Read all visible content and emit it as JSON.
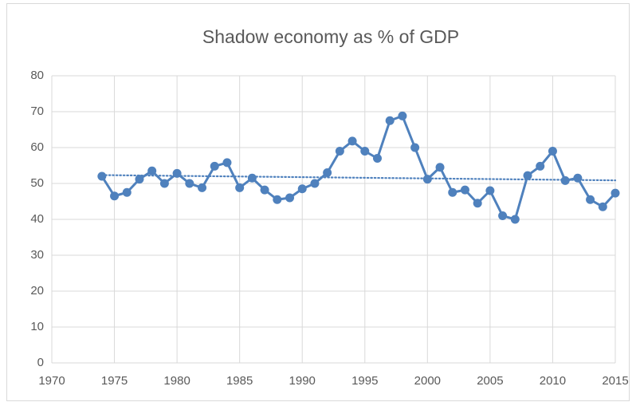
{
  "chart_data": {
    "type": "line",
    "title": "Shadow economy as % of GDP",
    "x": [
      1974,
      1975,
      1976,
      1977,
      1978,
      1979,
      1980,
      1981,
      1982,
      1983,
      1984,
      1985,
      1986,
      1987,
      1988,
      1989,
      1990,
      1991,
      1992,
      1993,
      1994,
      1995,
      1996,
      1997,
      1998,
      1999,
      2000,
      2001,
      2002,
      2003,
      2004,
      2005,
      2006,
      2007,
      2008,
      2009,
      2010,
      2011,
      2012,
      2013,
      2014,
      2015
    ],
    "values": [
      52,
      46.5,
      47.5,
      51.2,
      53.5,
      50,
      52.8,
      50,
      48.8,
      54.8,
      55.8,
      48.8,
      51.5,
      48.2,
      45.5,
      46,
      48.5,
      50,
      53,
      59,
      61.8,
      59,
      57,
      67.5,
      68.8,
      60,
      51.2,
      54.5,
      47.5,
      48.2,
      44.5,
      48,
      41,
      40,
      52.2,
      54.8,
      59,
      50.8,
      51.5,
      45.5,
      43.5,
      47.3
    ],
    "color": "#4f81bd",
    "trendline": "linear",
    "xlim": [
      1970,
      2015
    ],
    "xticks": [
      1970,
      1975,
      1980,
      1985,
      1990,
      1995,
      2000,
      2005,
      2010,
      2015
    ],
    "ylim": [
      0,
      80
    ],
    "yticks": [
      0,
      10,
      20,
      30,
      40,
      50,
      60,
      70,
      80
    ],
    "grid": true
  }
}
